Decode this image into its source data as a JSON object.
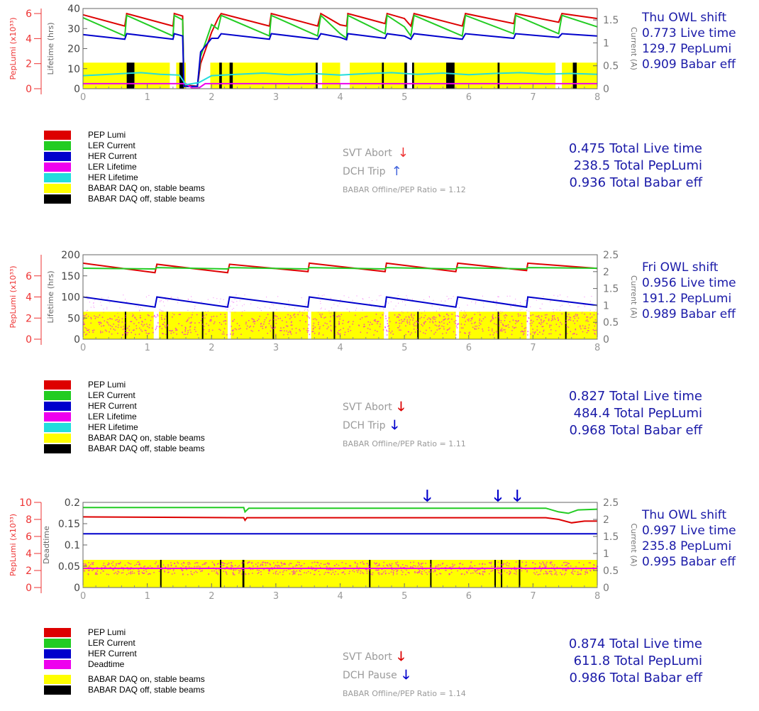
{
  "colors": {
    "pep_lumi": "#dd0000",
    "ler_current": "#22cc22",
    "her_current": "#0000cc",
    "ler_lifetime": "#ee00ee",
    "her_lifetime": "#22dddd",
    "daq_on": "#ffff00",
    "daq_off": "#000000",
    "axis_left": "#ee3333",
    "axis_right": "#777777",
    "stats": "#1a1aa8",
    "muted": "#9a9a9a"
  },
  "panels": [
    {
      "stats": [
        "Thu OWL shift",
        "0.773 Live time",
        "129.7 PepLumi",
        "0.909 Babar eff"
      ],
      "legend": [
        {
          "label": "PEP Lumi",
          "color": "pep_lumi"
        },
        {
          "label": "LER Current",
          "color": "ler_current"
        },
        {
          "label": "HER Current",
          "color": "her_current"
        },
        {
          "label": "LER Lifetime",
          "color": "ler_lifetime"
        },
        {
          "label": "HER Lifetime",
          "color": "her_lifetime"
        },
        {
          "label": "BABAR DAQ on, stable beams",
          "color": "daq_on"
        },
        {
          "label": "BABAR DAQ off, stable beams",
          "color": "daq_off"
        }
      ],
      "events": [
        {
          "label": "SVT Abort",
          "arrow": "↓",
          "arrow_color": "#ee3333"
        },
        {
          "label": "DCH Trip",
          "arrow": "↑",
          "arrow_color": "#4466dd"
        }
      ],
      "ratio": "BABAR Offline/PEP Ratio = 1.12",
      "totals": [
        "0.475 Total Live time",
        "238.5 Total PepLumi",
        "0.936 Total Babar eff"
      ]
    },
    {
      "stats": [
        "Fri OWL shift",
        "0.956 Live time",
        "191.2 PepLumi",
        "0.989 Babar eff"
      ],
      "legend": [
        {
          "label": "PEP Lumi",
          "color": "pep_lumi"
        },
        {
          "label": "LER Current",
          "color": "ler_current"
        },
        {
          "label": "HER Current",
          "color": "her_current"
        },
        {
          "label": "LER Lifetime",
          "color": "ler_lifetime"
        },
        {
          "label": "HER Lifetime",
          "color": "her_lifetime"
        },
        {
          "label": "BABAR DAQ on, stable beams",
          "color": "daq_on"
        },
        {
          "label": "BABAR DAQ off, stable beams",
          "color": "daq_off"
        }
      ],
      "events": [
        {
          "label": "SVT Abort",
          "arrow": "🡓",
          "arrow_color": "#dd0000"
        },
        {
          "label": "DCH Trip",
          "arrow": "🡓",
          "arrow_color": "#0000cc"
        }
      ],
      "ratio": "BABAR Offline/PEP Ratio = 1.11",
      "totals": [
        "0.827 Total Live time",
        "484.4 Total PepLumi",
        "0.968 Total Babar eff"
      ]
    },
    {
      "stats": [
        "Thu OWL shift",
        "0.997 Live time",
        "235.8 PepLumi",
        "0.995 Babar eff"
      ],
      "legend": [
        {
          "label": "PEP Lumi",
          "color": "pep_lumi"
        },
        {
          "label": "LER Current",
          "color": "ler_current"
        },
        {
          "label": "HER Current",
          "color": "her_current"
        },
        {
          "label": "Deadtime",
          "color": "ler_lifetime"
        },
        {
          "label": "BABAR DAQ on, stable beams",
          "color": "daq_on"
        },
        {
          "label": "BABAR DAQ off, stable beams",
          "color": "daq_off"
        }
      ],
      "events": [
        {
          "label": "SVT Abort",
          "arrow": "🡓",
          "arrow_color": "#dd0000"
        },
        {
          "label": "DCH Pause",
          "arrow": "🡓",
          "arrow_color": "#0000cc"
        }
      ],
      "ratio": "BABAR Offline/PEP Ratio = 1.14",
      "totals": [
        "0.874 Total Live time",
        "611.8 Total PepLumi",
        "0.986 Total Babar eff"
      ]
    }
  ],
  "chart_data": [
    {
      "type": "line",
      "xlabel": "",
      "xlim": [
        0,
        8
      ],
      "xticks": [
        "0",
        "1",
        "2",
        "3",
        "4",
        "5",
        "6",
        "7",
        "8"
      ],
      "ylabel_left": "Lifetime (hrs)",
      "ylim_left": [
        0,
        40
      ],
      "yticks_left": [
        "0",
        "10",
        "20",
        "30",
        "40"
      ],
      "ylabel_lumi": "PepLumi (x10³³)",
      "ylim_lumi": [
        0,
        6.4
      ],
      "yticks_lumi": [
        "0",
        "2",
        "4",
        "6"
      ],
      "ylabel_right": "Current (A)",
      "ylim_right": [
        0,
        1.75
      ],
      "yticks_right": [
        "0",
        "0.5",
        "1",
        "1.5"
      ],
      "series": [
        {
          "name": "PEP Lumi",
          "key": "pep_lumi",
          "x": [
            0.0,
            0.65,
            0.68,
            1.4,
            1.42,
            1.55,
            1.57,
            1.78,
            1.83,
            2.0,
            2.1,
            2.15,
            2.9,
            2.93,
            3.65,
            3.7,
            4.0,
            4.1,
            4.12,
            4.7,
            4.73,
            5.0,
            5.1,
            5.15,
            5.9,
            5.95,
            6.7,
            6.73,
            7.4,
            7.45,
            8.0
          ],
          "y": [
            5.9,
            5.0,
            6.0,
            5.0,
            6.0,
            5.8,
            0.3,
            0.2,
            2.0,
            4.5,
            5.6,
            6.0,
            5.0,
            6.0,
            5.0,
            6.0,
            5.1,
            5.0,
            6.0,
            5.2,
            6.0,
            5.6,
            5.0,
            6.0,
            5.0,
            6.0,
            5.2,
            6.0,
            5.3,
            6.0,
            5.6
          ]
        },
        {
          "name": "LER Current",
          "key": "ler_current",
          "x": [
            0.0,
            0.65,
            0.68,
            1.4,
            1.42,
            1.55,
            1.57,
            1.78,
            1.83,
            2.0,
            2.1,
            2.15,
            2.9,
            2.93,
            3.65,
            3.7,
            4.0,
            4.1,
            4.12,
            4.7,
            4.73,
            5.0,
            5.1,
            5.15,
            5.9,
            5.95,
            6.7,
            6.73,
            7.4,
            7.45,
            8.0
          ],
          "y": [
            1.55,
            1.15,
            1.6,
            1.15,
            1.6,
            1.5,
            0.05,
            0.05,
            0.7,
            1.4,
            1.3,
            1.6,
            1.15,
            1.6,
            1.15,
            1.6,
            1.2,
            1.1,
            1.6,
            1.2,
            1.6,
            1.35,
            1.15,
            1.6,
            1.15,
            1.6,
            1.2,
            1.6,
            1.2,
            1.6,
            1.35
          ]
        },
        {
          "name": "HER Current",
          "key": "her_current",
          "x": [
            0.0,
            0.65,
            0.68,
            1.4,
            1.42,
            1.55,
            1.57,
            1.78,
            1.83,
            2.0,
            2.1,
            2.15,
            2.9,
            2.93,
            3.65,
            3.7,
            4.0,
            4.1,
            4.12,
            4.7,
            4.73,
            5.0,
            5.1,
            5.15,
            5.9,
            5.95,
            6.7,
            6.73,
            7.4,
            7.45,
            8.0
          ],
          "y": [
            1.18,
            1.08,
            1.2,
            1.08,
            1.2,
            1.15,
            0.05,
            0.05,
            0.8,
            1.1,
            1.1,
            1.2,
            1.08,
            1.2,
            1.08,
            1.2,
            1.12,
            1.07,
            1.2,
            1.1,
            1.2,
            1.15,
            1.08,
            1.2,
            1.08,
            1.2,
            1.1,
            1.2,
            1.12,
            1.2,
            1.15
          ]
        },
        {
          "name": "LER Lifetime",
          "key": "ler_lifetime",
          "x": [
            0,
            1.6,
            1.7,
            1.8,
            1.9,
            8
          ],
          "y": [
            2.5,
            2.5,
            0.3,
            0.3,
            2.5,
            2.5
          ]
        },
        {
          "name": "HER Lifetime",
          "key": "her_lifetime",
          "x": [
            0,
            0.3,
            0.6,
            0.9,
            1.2,
            1.5,
            1.6,
            1.8,
            2.0,
            2.4,
            2.8,
            3.2,
            3.6,
            4.0,
            4.4,
            4.8,
            5.2,
            5.6,
            6.0,
            6.4,
            6.8,
            7.2,
            7.6,
            8.0
          ],
          "y": [
            6.5,
            7.0,
            7.5,
            8.0,
            7.2,
            6.8,
            2.0,
            3.0,
            6.5,
            7.2,
            7.8,
            7.0,
            7.5,
            6.8,
            7.5,
            8.0,
            7.2,
            7.8,
            7.0,
            7.6,
            8.0,
            7.3,
            7.6,
            7.2
          ]
        }
      ],
      "daq_on": [
        [
          0,
          1.35
        ],
        [
          1.45,
          1.6
        ],
        [
          1.98,
          3.65
        ],
        [
          3.72,
          4.0
        ],
        [
          4.15,
          5.0
        ],
        [
          5.15,
          7.35
        ],
        [
          7.45,
          8.0
        ]
      ],
      "daq_off": [
        [
          0.68,
          0.8
        ],
        [
          1.5,
          1.57
        ],
        [
          2.12,
          2.16
        ],
        [
          2.28,
          2.33
        ],
        [
          3.62,
          3.65
        ],
        [
          4.65,
          4.68
        ],
        [
          5.0,
          5.04
        ],
        [
          5.12,
          5.15
        ],
        [
          5.65,
          5.78
        ],
        [
          6.45,
          6.48
        ],
        [
          7.62,
          7.68
        ]
      ],
      "events_marked": []
    },
    {
      "type": "line",
      "xlabel": "",
      "xlim": [
        0,
        8
      ],
      "xticks": [
        "0",
        "1",
        "2",
        "3",
        "4",
        "5",
        "6",
        "7",
        "8"
      ],
      "ylabel_left": "Lifetime (hrs)",
      "ylim_left": [
        0,
        200
      ],
      "yticks_left": [
        "0",
        "50",
        "100",
        "150",
        "200"
      ],
      "ylabel_lumi": "PepLumi (x10³³)",
      "ylim_lumi": [
        0,
        8
      ],
      "yticks_lumi": [
        "0",
        "2",
        "4",
        "6"
      ],
      "ylabel_right": "Current (A)",
      "ylim_right": [
        0,
        2.5
      ],
      "yticks_right": [
        "0",
        "0.5",
        "1",
        "1.5",
        "2",
        "2.5"
      ],
      "series": [
        {
          "name": "PEP Lumi",
          "key": "pep_lumi",
          "x": [
            0,
            1.12,
            1.15,
            2.25,
            2.28,
            3.5,
            3.52,
            4.7,
            4.72,
            5.8,
            5.83,
            6.9,
            6.92,
            8.0
          ],
          "y": [
            7.2,
            6.3,
            7.1,
            6.3,
            7.1,
            6.4,
            7.2,
            6.4,
            7.2,
            6.4,
            7.2,
            6.5,
            7.2,
            6.7
          ]
        },
        {
          "name": "LER Current",
          "key": "ler_current",
          "x": [
            0,
            1.12,
            1.15,
            2.25,
            2.28,
            3.5,
            3.52,
            4.7,
            4.72,
            5.8,
            5.83,
            6.9,
            6.92,
            8.0
          ],
          "y": [
            2.1,
            2.08,
            2.12,
            2.08,
            2.12,
            2.08,
            2.12,
            2.08,
            2.12,
            2.08,
            2.12,
            2.08,
            2.12,
            2.1
          ]
        },
        {
          "name": "HER Current",
          "key": "her_current",
          "x": [
            0,
            1.12,
            1.15,
            2.25,
            2.28,
            3.5,
            3.52,
            4.7,
            4.72,
            5.8,
            5.83,
            6.9,
            6.92,
            8.0
          ],
          "y": [
            1.25,
            0.95,
            1.25,
            0.95,
            1.25,
            0.95,
            1.25,
            0.95,
            1.25,
            0.95,
            1.25,
            0.95,
            1.25,
            1.0
          ]
        }
      ],
      "daq_on": [
        [
          0,
          1.1
        ],
        [
          1.18,
          2.25
        ],
        [
          2.3,
          3.5
        ],
        [
          3.55,
          4.68
        ],
        [
          4.75,
          5.8
        ],
        [
          5.85,
          6.9
        ],
        [
          6.95,
          8.0
        ]
      ],
      "daq_off": [
        [
          0.65,
          0.67
        ],
        [
          1.3,
          1.32
        ],
        [
          1.85,
          1.87
        ],
        [
          2.95,
          2.97
        ],
        [
          3.9,
          3.92
        ],
        [
          5.2,
          5.22
        ],
        [
          6.45,
          6.47
        ],
        [
          7.5,
          7.52
        ]
      ],
      "scatter_band": [
        10,
        110
      ],
      "events_marked": []
    },
    {
      "type": "line",
      "xlabel": "",
      "xlim": [
        0,
        8
      ],
      "xticks": [
        "0",
        "1",
        "2",
        "3",
        "4",
        "5",
        "6",
        "7",
        "8"
      ],
      "ylabel_left": "Deadtime",
      "ylim_left": [
        0,
        0.2
      ],
      "yticks_left": [
        "0",
        "0.05",
        "0.1",
        "0.15",
        "0.2"
      ],
      "ylabel_lumi": "PepLumi (x10³³)",
      "ylim_lumi": [
        0,
        10
      ],
      "yticks_lumi": [
        "0",
        "2",
        "4",
        "6",
        "8",
        "10"
      ],
      "ylabel_right": "Current (A)",
      "ylim_right": [
        0,
        2.5
      ],
      "yticks_right": [
        "0",
        "0.5",
        "1",
        "1.5",
        "2",
        "2.5"
      ],
      "series": [
        {
          "name": "PEP Lumi",
          "key": "pep_lumi",
          "x": [
            0,
            2.5,
            2.52,
            2.55,
            7.2,
            7.4,
            7.6,
            7.8,
            8.0
          ],
          "y": [
            8.3,
            8.2,
            7.9,
            8.2,
            8.2,
            8.0,
            7.6,
            7.8,
            7.8
          ]
        },
        {
          "name": "LER Current",
          "key": "ler_current",
          "x": [
            0,
            2.5,
            2.52,
            2.58,
            7.2,
            7.4,
            7.55,
            7.7,
            8.0
          ],
          "y": [
            2.35,
            2.35,
            2.22,
            2.33,
            2.33,
            2.22,
            2.18,
            2.28,
            2.3
          ]
        },
        {
          "name": "HER Current",
          "key": "her_current",
          "x": [
            0,
            8
          ],
          "y": [
            1.58,
            1.58
          ]
        },
        {
          "name": "Deadtime",
          "key": "ler_lifetime",
          "x": [
            0,
            8
          ],
          "y": [
            0.045,
            0.045
          ]
        }
      ],
      "daq_on": [
        [
          0,
          8.0
        ]
      ],
      "daq_off": [
        [
          1.2,
          1.22
        ],
        [
          2.13,
          2.15
        ],
        [
          2.48,
          2.51
        ],
        [
          4.45,
          4.47
        ],
        [
          5.4,
          5.42
        ],
        [
          6.4,
          6.42
        ],
        [
          6.5,
          6.52
        ],
        [
          6.78,
          6.8
        ]
      ],
      "events_marked": [
        5.38,
        6.48,
        6.78
      ]
    }
  ]
}
